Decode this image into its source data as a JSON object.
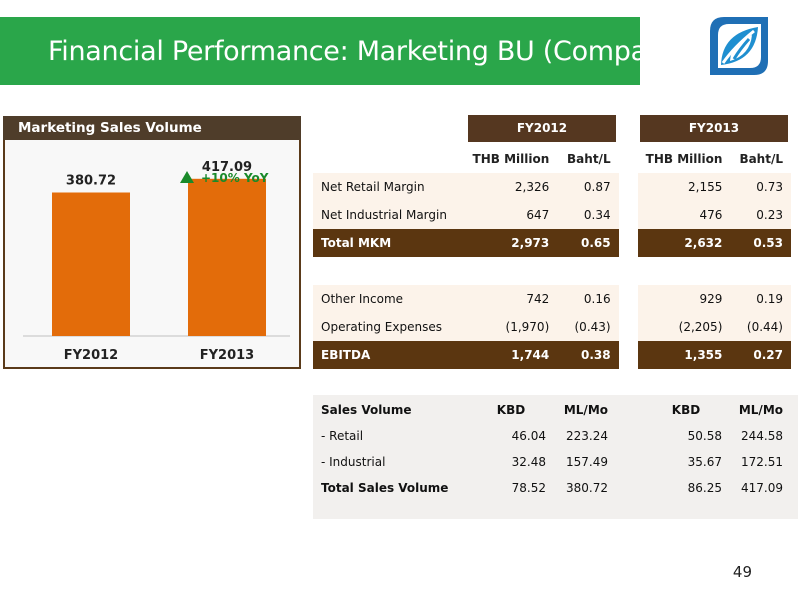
{
  "header": {
    "title": "Financial Performance: Marketing BU (Company)"
  },
  "page_number": "49",
  "colors": {
    "accent_green": "#2aa64a",
    "dark_brown": "#553720",
    "bar_orange": "#e36c0a",
    "yoy_green": "#1a8a2a"
  },
  "chart_panel": {
    "title": "Marketing Sales Volume",
    "yoy_label": "+10% YoY"
  },
  "chart_data": {
    "type": "bar",
    "title": "Marketing Sales Volume",
    "categories": [
      "FY2012",
      "FY2013"
    ],
    "values": [
      380.72,
      417.09
    ],
    "value_labels": [
      "380.72",
      "417.09"
    ],
    "annotations": [
      "+10% YoY"
    ],
    "ylim": [
      0,
      520
    ],
    "grid": false,
    "xlabel": "",
    "ylabel": ""
  },
  "margin_table": {
    "periods": [
      "FY2012",
      "FY2013"
    ],
    "subheaders": [
      "THB Million",
      "Baht/L",
      "THB Million",
      "Baht/L"
    ],
    "rows": [
      {
        "label": "Net Retail Margin",
        "values": [
          "2,326",
          "0.87",
          "2,155",
          "0.73"
        ],
        "style": "light"
      },
      {
        "label": "Net Industrial Margin",
        "values": [
          "647",
          "0.34",
          "476",
          "0.23"
        ],
        "style": "light"
      },
      {
        "label": "Total MKM",
        "values": [
          "2,973",
          "0.65",
          "2,632",
          "0.53"
        ],
        "style": "dark"
      },
      {
        "label": "Other Income",
        "values": [
          "742",
          "0.16",
          "929",
          "0.19"
        ],
        "style": "light"
      },
      {
        "label": "Operating Expenses",
        "values": [
          "(1,970)",
          "(0.43)",
          "(2,205)",
          "(0.44)"
        ],
        "style": "light"
      },
      {
        "label": "EBITDA",
        "values": [
          "1,744",
          "0.38",
          "1,355",
          "0.27"
        ],
        "style": "dark"
      }
    ]
  },
  "sales_table": {
    "header": {
      "label": "Sales Volume",
      "cols": [
        "KBD",
        "ML/Mo",
        "KBD",
        "ML/Mo"
      ]
    },
    "rows": [
      {
        "label": "- Retail",
        "values": [
          "46.04",
          "223.24",
          "50.58",
          "244.58"
        ]
      },
      {
        "label": "- Industrial",
        "values": [
          "32.48",
          "157.49",
          "35.67",
          "172.51"
        ]
      },
      {
        "label": "Total Sales Volume",
        "values": [
          "78.52",
          "380.72",
          "86.25",
          "417.09"
        ],
        "bold": true
      }
    ]
  }
}
